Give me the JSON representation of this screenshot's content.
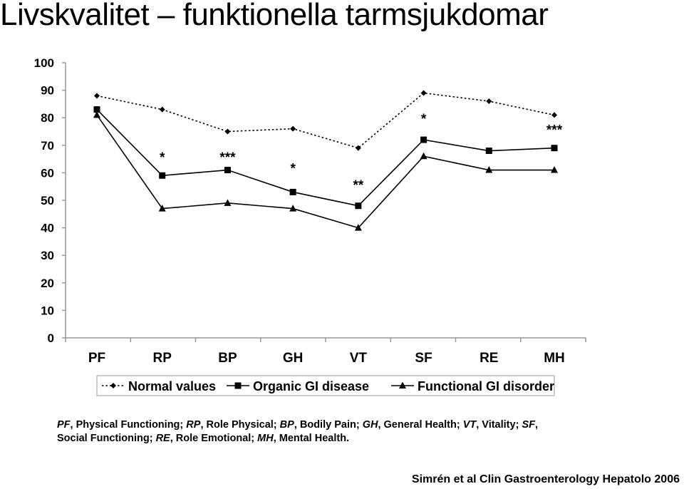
{
  "page_title": "Livskvalitet – funktionella tarmsjukdomar",
  "chart_data": {
    "type": "line",
    "categories": [
      "PF",
      "RP",
      "BP",
      "GH",
      "VT",
      "SF",
      "RE",
      "MH"
    ],
    "ylim": [
      0,
      100
    ],
    "yticks": [
      0,
      10,
      20,
      30,
      40,
      50,
      60,
      70,
      80,
      90,
      100
    ],
    "grid": false,
    "legend_position": "bottom",
    "series": [
      {
        "name": "Normal values",
        "marker": "diamond",
        "line": "dotted",
        "values": [
          88,
          83,
          75,
          76,
          69,
          89,
          86,
          81
        ]
      },
      {
        "name": "Organic GI disease",
        "marker": "square",
        "line": "solid",
        "values": [
          83,
          59,
          61,
          53,
          48,
          72,
          68,
          69
        ]
      },
      {
        "name": "Functional GI disorder",
        "marker": "triangle",
        "line": "solid",
        "values": [
          81,
          47,
          49,
          47,
          40,
          66,
          61,
          61
        ]
      }
    ],
    "annotations": [
      {
        "category": "RP",
        "y": 66,
        "text": "*"
      },
      {
        "category": "BP",
        "y": 66,
        "text": "***"
      },
      {
        "category": "GH",
        "y": 62,
        "text": "*"
      },
      {
        "category": "VT",
        "y": 56,
        "text": "**"
      },
      {
        "category": "SF",
        "y": 80,
        "text": "*"
      },
      {
        "category": "MH",
        "y": 76,
        "text": "***"
      }
    ]
  },
  "caption": {
    "parts": [
      {
        "t": "PF",
        "i": true
      },
      {
        "t": ", Physical Functioning; ",
        "i": false
      },
      {
        "t": "RP",
        "i": true
      },
      {
        "t": ", Role Physical; ",
        "i": false
      },
      {
        "t": "BP",
        "i": true
      },
      {
        "t": ", Bodily Pain; ",
        "i": false
      },
      {
        "t": "GH",
        "i": true
      },
      {
        "t": ", General Health; ",
        "i": false
      },
      {
        "t": "VT",
        "i": true
      },
      {
        "t": ", Vitality; ",
        "i": false
      },
      {
        "t": "SF",
        "i": true
      },
      {
        "t": ", Social Functioning; ",
        "i": false
      },
      {
        "t": "RE",
        "i": true
      },
      {
        "t": ", Role Emotional; ",
        "i": false
      },
      {
        "t": "MH",
        "i": true
      },
      {
        "t": ", Mental Health.",
        "i": false
      }
    ]
  },
  "source": "Simrén et al Clin Gastroenterology Hepatolo 2006"
}
